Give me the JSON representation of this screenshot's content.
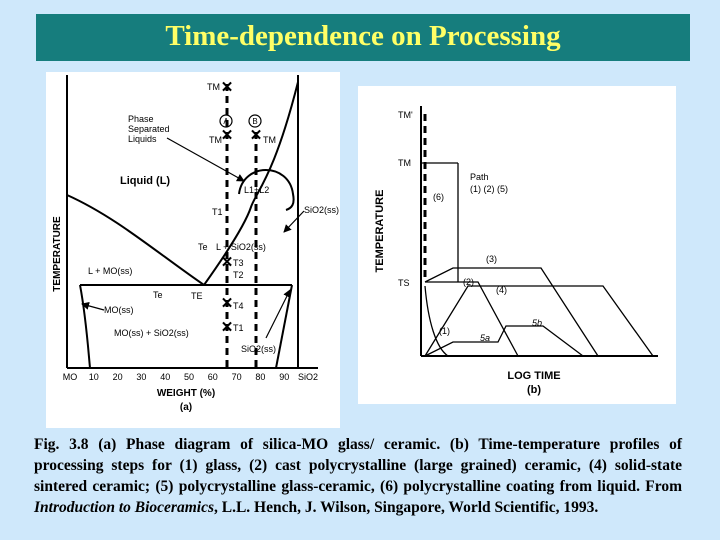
{
  "title": "Time-dependence on Processing",
  "diagram_a": {
    "y_axis_label": "TEMPERATURE",
    "x_axis_label": "WEIGHT (%)",
    "panel_label": "(a)",
    "x_ticks": [
      "MO",
      "10",
      "20",
      "30",
      "40",
      "50",
      "60",
      "70",
      "80",
      "90",
      "SiO2"
    ],
    "labels": {
      "tm_top": "TM",
      "phase_separated": [
        "Phase",
        "Separated",
        "Liquids"
      ],
      "circle_a": "A",
      "circle_b": "B",
      "tm_a": "TM",
      "tm_b": "TM",
      "liquid": "Liquid (L)",
      "l1l2": "L1+L2",
      "sio2_ss_right": "SiO2(ss)",
      "t1_upper": "T1",
      "te_upper": "Te",
      "l_sio2": "L + SiO2(ss)",
      "t3": "T3",
      "t2": "T2",
      "l_mo": "L + MO(ss)",
      "te_lower": "Te",
      "te_e": "TE",
      "t4": "T4",
      "mo_ss": "MO(ss)",
      "t1_lower": "T1",
      "mo_sio2": "MO(ss) + SiO2(ss)",
      "sio2_ss_bottom": "SiO2(ss)"
    }
  },
  "diagram_b": {
    "y_axis_label": "TEMPERATURE",
    "x_axis_label": "LOG TIME",
    "panel_label": "(b)",
    "labels": {
      "tm_prime": "TM'",
      "tm": "TM",
      "ts": "TS",
      "path_title": "Path",
      "path_list": "(1) (2) (5)",
      "p6": "(6)",
      "p3": "(3)",
      "p2": "(2)",
      "p4": "(4)",
      "p1": "(1)",
      "p5a": "5a",
      "p5b": "5b"
    }
  },
  "caption": {
    "main": "Fig. 3.8 (a) Phase diagram of silica-MO glass/ ceramic. (b) Time-temperature profiles of processing steps for (1) glass, (2) cast polycrystalline (large grained) ceramic, (4) solid-state sintered ceramic; (5) polycrystalline glass-ceramic, (6) polycrystalline coating from liquid. From ",
    "book": "Introduction to Bioceramics",
    "tail": ", L.L. Hench, J. Wilson, Singapore, World Scientific, 1993."
  }
}
